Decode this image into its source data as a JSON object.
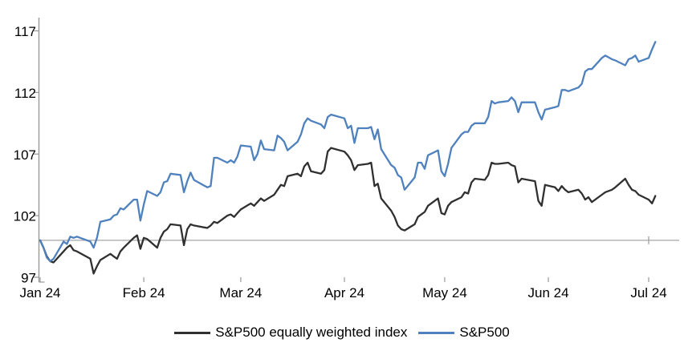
{
  "page": {
    "background": "#ffffff",
    "title": ""
  },
  "chart_data": {
    "type": "line",
    "title": "",
    "xlabel": "",
    "ylabel": "",
    "grid": "off",
    "legend_position": "bottom",
    "baseline_value": 100,
    "y_axis": {
      "tick_values": [
        97,
        102,
        107,
        112,
        117
      ],
      "tick_labels": [
        "97",
        "102",
        "107",
        "112",
        "117"
      ],
      "range": [
        97,
        117
      ]
    },
    "x_axis": {
      "tick_labels": [
        "Jan 24",
        "Feb 24",
        "Mar 24",
        "Apr 24",
        "May 24",
        "Jun 24",
        "Jul 24"
      ],
      "month_start_days": [
        0,
        31,
        60,
        91,
        121,
        152,
        182
      ],
      "range_days": [
        0,
        184
      ]
    },
    "colors": {
      "sp500": "#4E81BD",
      "equal_weight": "#303030",
      "axis": "#999999",
      "baseline": "#A6A6A6",
      "text": "#000000"
    },
    "days": [
      0,
      1,
      2,
      3,
      4,
      7,
      8,
      9,
      10,
      11,
      15,
      16,
      17,
      18,
      21,
      22,
      23,
      24,
      25,
      28,
      29,
      30,
      31,
      32,
      35,
      36,
      37,
      38,
      39,
      42,
      43,
      44,
      45,
      46,
      50,
      51,
      52,
      53,
      56,
      57,
      58,
      59,
      60,
      63,
      64,
      65,
      66,
      67,
      70,
      71,
      72,
      73,
      74,
      77,
      78,
      79,
      80,
      81,
      84,
      85,
      86,
      87,
      91,
      92,
      93,
      94,
      95,
      98,
      99,
      100,
      101,
      102,
      105,
      106,
      107,
      108,
      109,
      112,
      113,
      114,
      115,
      116,
      119,
      120,
      121,
      122,
      123,
      126,
      127,
      128,
      129,
      130,
      133,
      134,
      135,
      136,
      137,
      140,
      141,
      142,
      143,
      144,
      148,
      149,
      150,
      151,
      154,
      155,
      156,
      157,
      158,
      161,
      162,
      163,
      164,
      165,
      168,
      169,
      171,
      172,
      175,
      176,
      177,
      178,
      179,
      182,
      183,
      184
    ],
    "series": [
      {
        "name": "S&P500 equally weighted index",
        "color_key": "equal_weight",
        "values": [
          100.0,
          99.4,
          98.7,
          98.3,
          98.2,
          99.1,
          99.4,
          99.6,
          99.2,
          99.1,
          98.5,
          97.3,
          97.9,
          98.4,
          98.9,
          98.7,
          98.5,
          99.1,
          99.4,
          100.2,
          100.4,
          99.3,
          100.2,
          100.1,
          99.4,
          100.2,
          100.7,
          100.9,
          101.3,
          101.2,
          99.6,
          100.9,
          101.3,
          101.2,
          101.0,
          101.2,
          101.5,
          101.4,
          102.0,
          102.1,
          101.9,
          102.2,
          102.5,
          103.0,
          102.8,
          103.1,
          103.4,
          103.2,
          103.7,
          104.1,
          104.5,
          104.4,
          105.2,
          105.4,
          105.2,
          106.0,
          106.3,
          105.6,
          105.4,
          105.7,
          107.2,
          107.5,
          107.2,
          106.9,
          106.5,
          105.7,
          106.1,
          106.2,
          106.3,
          104.4,
          104.6,
          103.4,
          102.4,
          101.9,
          101.2,
          100.9,
          100.8,
          101.3,
          101.9,
          102.1,
          102.3,
          102.8,
          103.4,
          102.2,
          102.1,
          102.8,
          103.1,
          103.5,
          103.9,
          103.8,
          104.7,
          105.0,
          104.9,
          105.3,
          106.3,
          106.2,
          106.2,
          106.3,
          106.1,
          106.0,
          104.7,
          105.0,
          104.8,
          103.2,
          102.8,
          104.5,
          104.3,
          104.0,
          104.4,
          104.1,
          103.9,
          104.1,
          103.8,
          103.3,
          103.5,
          103.1,
          103.7,
          103.9,
          104.1,
          104.3,
          105.0,
          104.5,
          104.1,
          104.0,
          103.7,
          103.3,
          103.0,
          103.6
        ]
      },
      {
        "name": "S&P500",
        "color_key": "sp500",
        "values": [
          100.0,
          99.4,
          98.6,
          98.3,
          98.5,
          99.9,
          99.7,
          100.3,
          100.2,
          100.3,
          99.9,
          99.4,
          100.2,
          101.5,
          101.7,
          102.0,
          102.1,
          102.6,
          102.5,
          103.3,
          103.3,
          101.6,
          102.9,
          104.0,
          103.6,
          103.9,
          104.7,
          104.8,
          105.4,
          105.3,
          103.9,
          104.8,
          105.5,
          104.9,
          104.3,
          104.4,
          106.7,
          106.7,
          106.3,
          106.5,
          106.3,
          106.8,
          107.7,
          107.6,
          106.5,
          107.0,
          108.1,
          107.4,
          107.3,
          108.5,
          108.3,
          108.0,
          107.3,
          108.0,
          108.6,
          109.5,
          109.9,
          109.7,
          109.4,
          109.1,
          110.0,
          110.2,
          109.9,
          109.1,
          109.3,
          107.9,
          109.1,
          109.1,
          109.2,
          108.2,
          109.0,
          107.4,
          106.1,
          105.9,
          105.3,
          105.1,
          104.1,
          105.1,
          106.3,
          106.3,
          105.8,
          106.9,
          107.3,
          105.6,
          105.2,
          106.2,
          107.5,
          108.6,
          108.8,
          108.8,
          109.3,
          109.5,
          109.5,
          110.0,
          111.3,
          111.1,
          111.2,
          111.3,
          111.6,
          111.3,
          110.4,
          111.2,
          111.2,
          110.4,
          109.8,
          110.6,
          110.8,
          110.9,
          112.2,
          112.2,
          112.1,
          112.4,
          112.7,
          113.7,
          113.9,
          113.9,
          114.8,
          115.0,
          114.7,
          114.6,
          114.2,
          114.7,
          114.8,
          115.0,
          114.5,
          114.8,
          115.5,
          116.1
        ]
      }
    ]
  }
}
